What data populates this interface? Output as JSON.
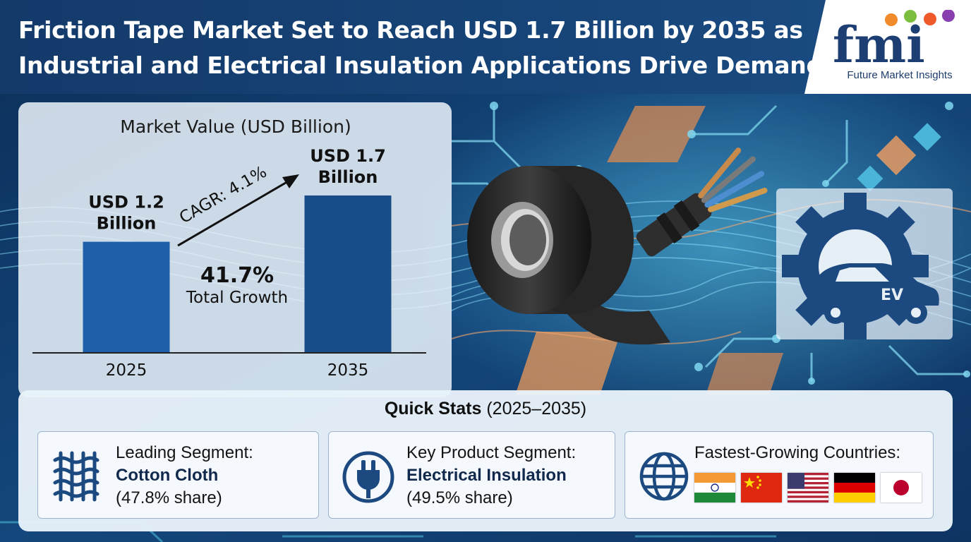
{
  "header": {
    "title_line1": "Friction Tape Market Set to Reach USD 1.7 Billion by 2035 as",
    "title_line2": "Industrial and Electrical Insulation Applications Drive Demand"
  },
  "logo": {
    "text": "fmi",
    "subtitle": "Future Market Insights"
  },
  "chart_data": {
    "type": "bar",
    "title": "Market Value (USD Billion)",
    "categories": [
      "2025",
      "2035"
    ],
    "values": [
      1.2,
      1.7
    ],
    "value_labels": [
      [
        "USD 1.2",
        "Billion"
      ],
      [
        "USD 1.7",
        "Billion"
      ]
    ],
    "ylim": [
      0,
      1.7
    ],
    "cagr_label": "CAGR: 4.1%",
    "growth_value": "41.7%",
    "growth_label": "Total Growth",
    "bar_colors": [
      "#1f5ea8",
      "#184d8a"
    ]
  },
  "ev_badge": "EV",
  "stats": {
    "title_bold": "Quick Stats",
    "title_rest": " (2025–2035)",
    "cards": [
      {
        "icon": "fabric-weave-icon",
        "label": "Leading Segment:",
        "value": "Cotton Cloth",
        "note": "(47.8% share)"
      },
      {
        "icon": "electric-plug-icon",
        "label": "Key Product Segment:",
        "value": "Electrical Insulation",
        "note": "(49.5% share)"
      },
      {
        "icon": "globe-icon",
        "label": "Fastest-Growing Countries:",
        "countries": [
          "India",
          "China",
          "United States",
          "Germany",
          "Japan"
        ]
      }
    ]
  },
  "colors": {
    "navy": "#143a6a",
    "accent_orange": "#e8934f",
    "cyan": "#35c6e6"
  }
}
